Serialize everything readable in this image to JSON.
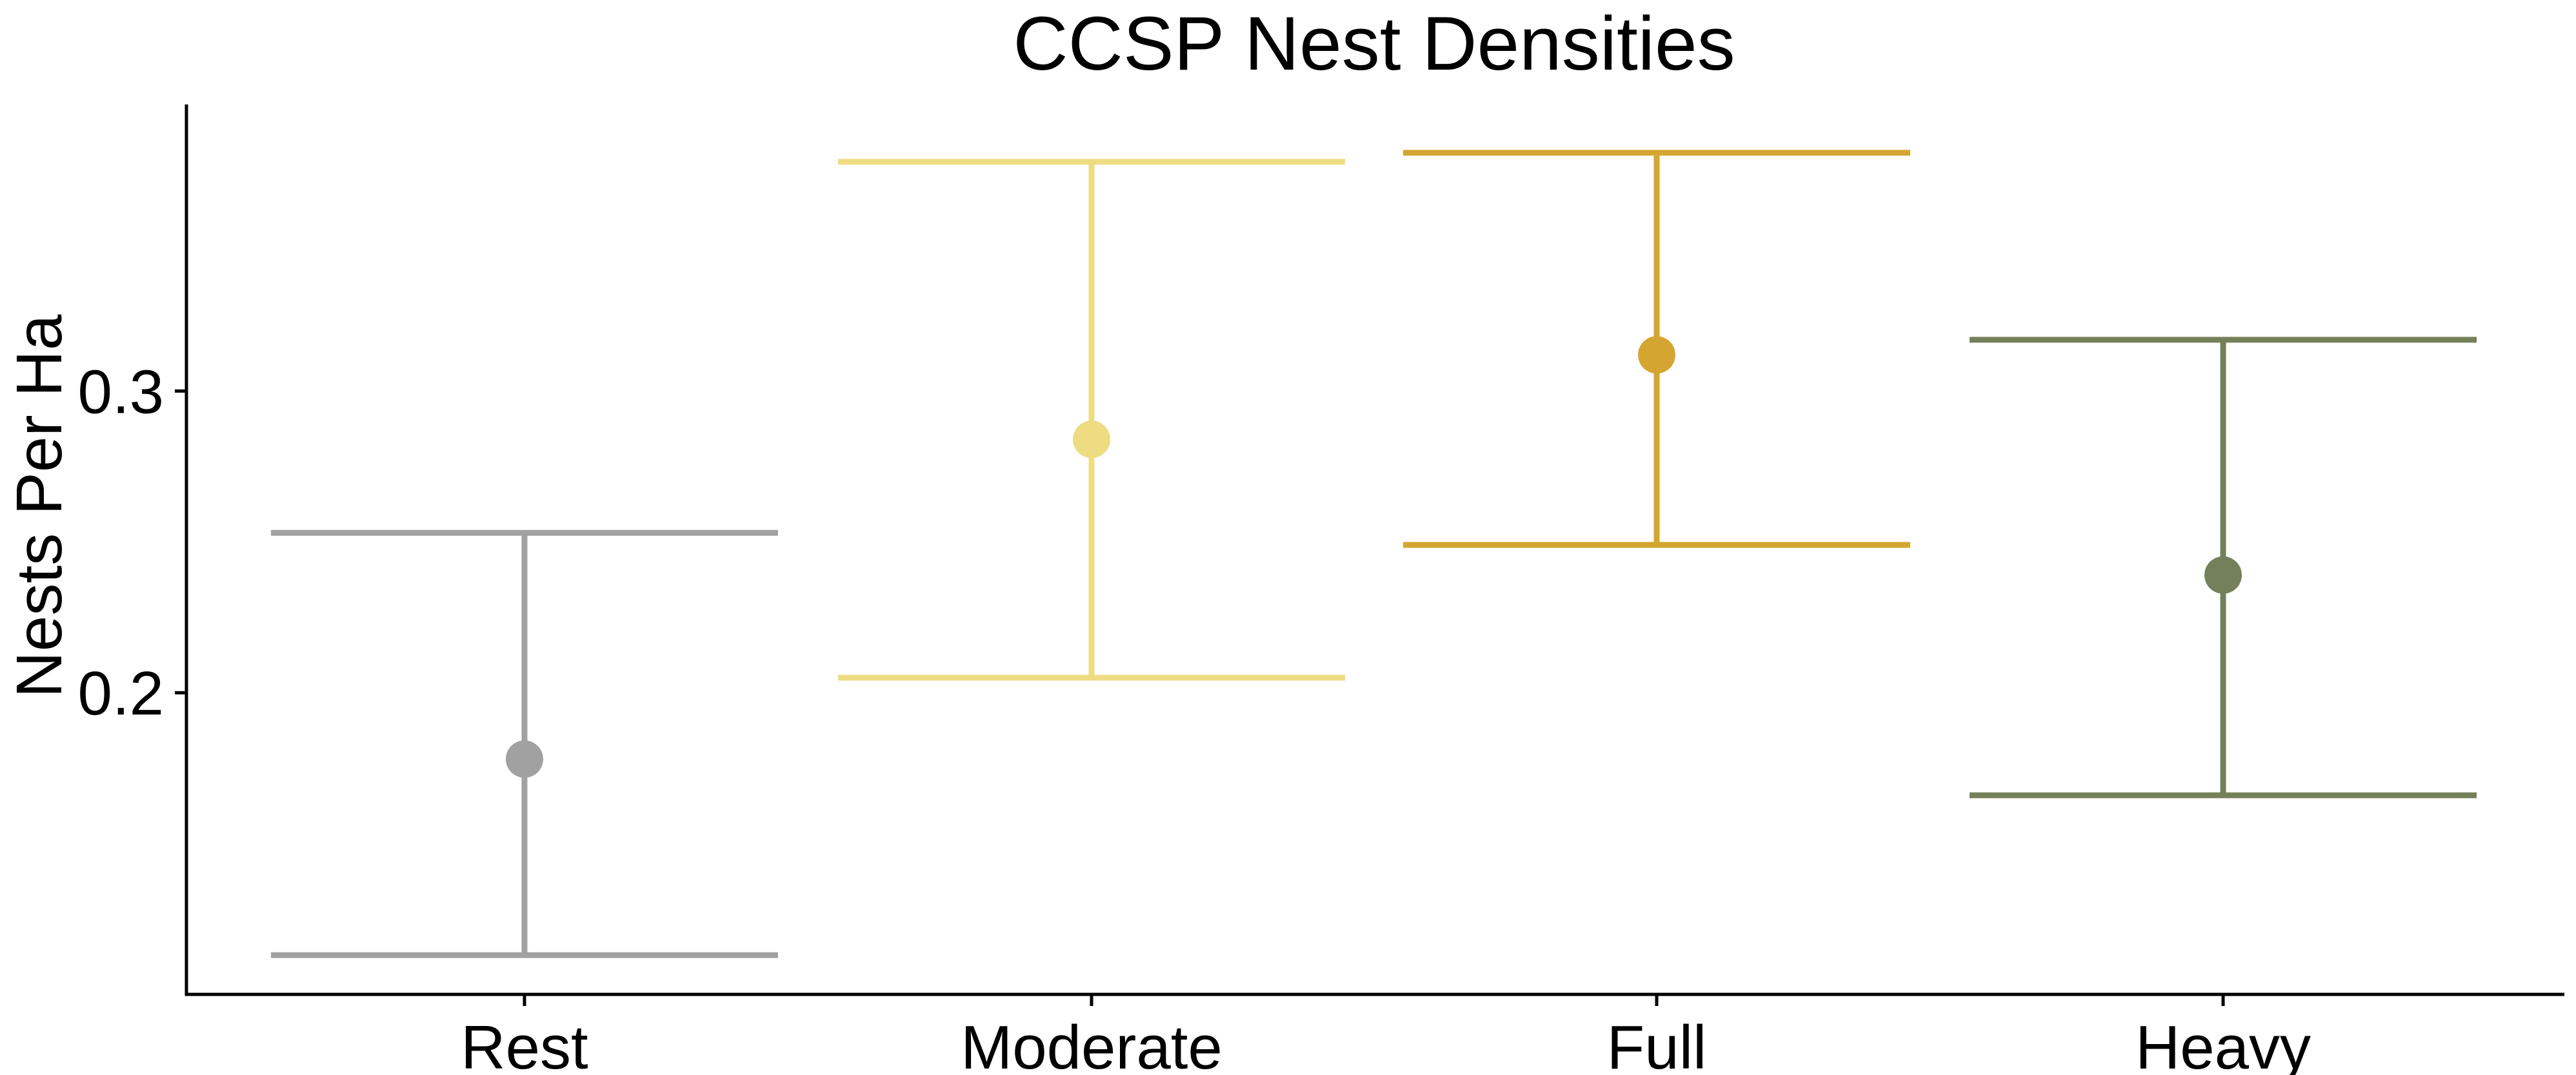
{
  "chart_data": {
    "type": "errorbar",
    "title": "CCSP Nest Densities",
    "xlabel": "",
    "ylabel": "Nests Per Ha",
    "ylim": [
      0.1,
      0.395
    ],
    "yticks": [
      0.2,
      0.3
    ],
    "ytick_labels": [
      "0.2",
      "0.3"
    ],
    "grid": false,
    "legend": "none",
    "categories": [
      "Rest",
      "Moderate",
      "Full",
      "Heavy"
    ],
    "points": [
      {
        "category": "Rest",
        "estimate": 0.178,
        "lower": 0.113,
        "upper": 0.253,
        "color": "#a1a1a1"
      },
      {
        "category": "Moderate",
        "estimate": 0.284,
        "lower": 0.205,
        "upper": 0.376,
        "color": "#eedc82"
      },
      {
        "category": "Full",
        "estimate": 0.312,
        "lower": 0.249,
        "upper": 0.379,
        "color": "#d4a631"
      },
      {
        "category": "Heavy",
        "estimate": 0.239,
        "lower": 0.166,
        "upper": 0.317,
        "color": "#738059"
      }
    ]
  }
}
